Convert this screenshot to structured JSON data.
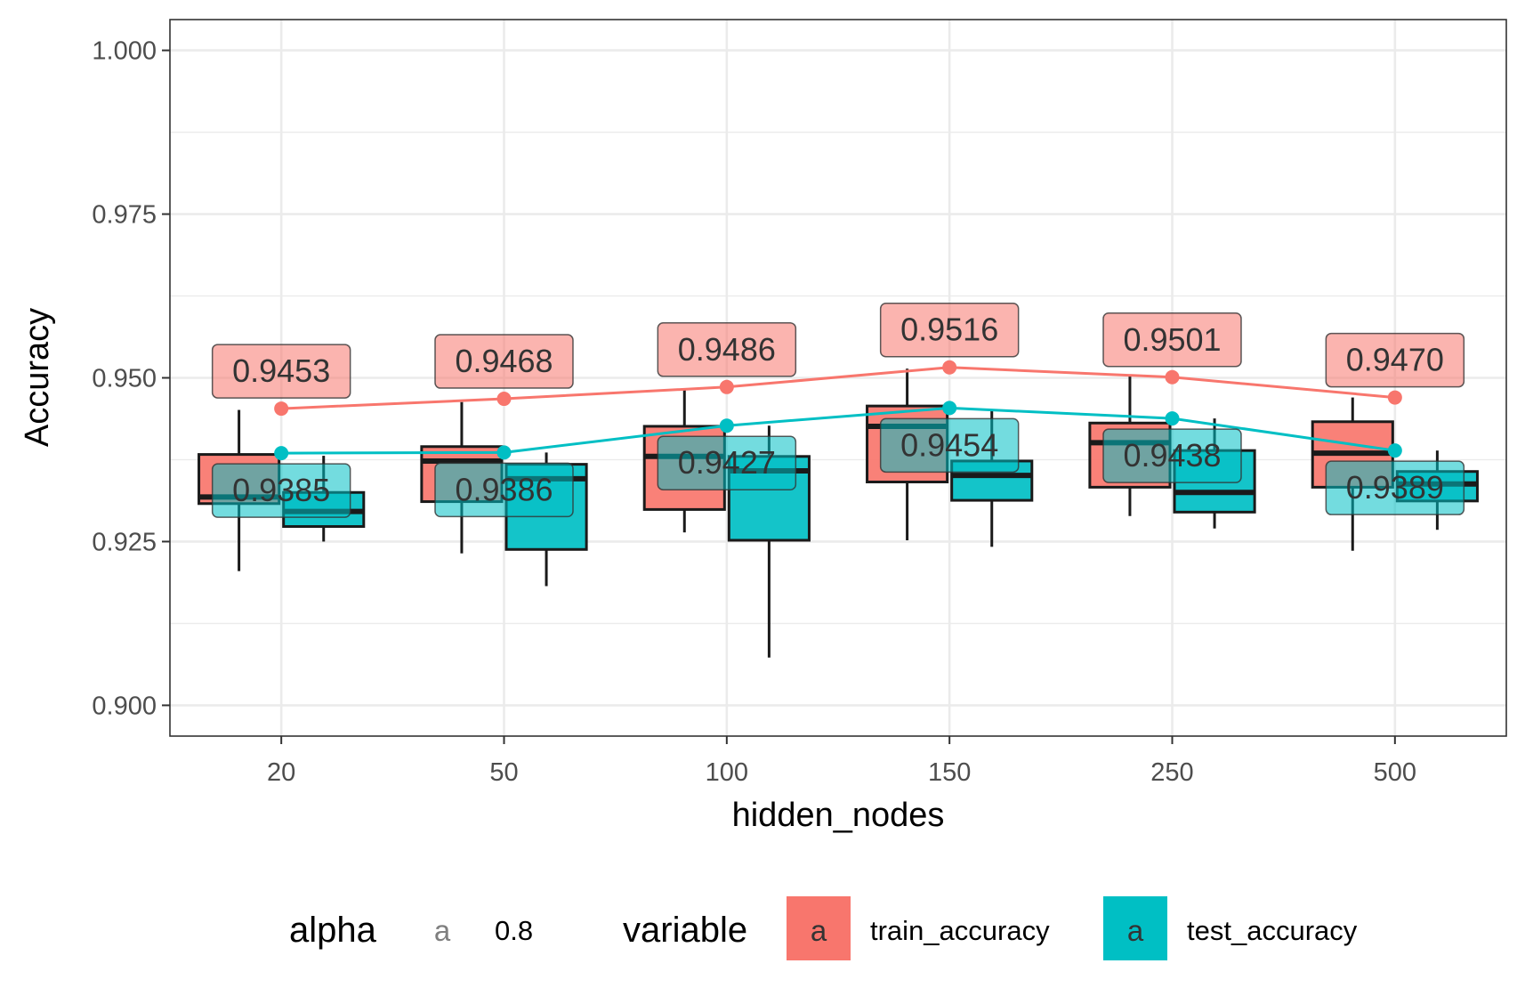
{
  "chart_data": {
    "type": "boxplot",
    "xlabel": "hidden_nodes",
    "ylabel": "Accuracy",
    "categories": [
      "20",
      "50",
      "100",
      "150",
      "250",
      "500"
    ],
    "ylim": [
      0.8953,
      1.0047
    ],
    "y_ticks": [
      0.9,
      0.925,
      0.95,
      0.975,
      1.0
    ],
    "y_tick_labels": [
      "0.900",
      "0.925",
      "0.950",
      "0.975",
      "1.000"
    ],
    "grid": true,
    "legend_position": "bottom",
    "series": [
      {
        "name": "train_accuracy",
        "color": "#F8766D",
        "boxes": [
          {
            "min": 0.9205,
            "q1": 0.9308,
            "median": 0.9318,
            "q3": 0.9383,
            "max": 0.9451
          },
          {
            "min": 0.9232,
            "q1": 0.9311,
            "median": 0.9373,
            "q3": 0.9395,
            "max": 0.9463
          },
          {
            "min": 0.9264,
            "q1": 0.9299,
            "median": 0.938,
            "q3": 0.9426,
            "max": 0.9484
          },
          {
            "min": 0.9252,
            "q1": 0.9341,
            "median": 0.9426,
            "q3": 0.9457,
            "max": 0.9514
          },
          {
            "min": 0.9289,
            "q1": 0.9333,
            "median": 0.9401,
            "q3": 0.9431,
            "max": 0.9502
          },
          {
            "min": 0.9236,
            "q1": 0.9333,
            "median": 0.9385,
            "q3": 0.9433,
            "max": 0.947
          }
        ],
        "means": [
          0.9453,
          0.9468,
          0.9486,
          0.9516,
          0.9501,
          0.947
        ],
        "mean_labels": [
          "0.9453",
          "0.9468",
          "0.9486",
          "0.9516",
          "0.9501",
          "0.9470"
        ]
      },
      {
        "name": "test_accuracy",
        "color": "#00BFC4",
        "boxes": [
          {
            "min": 0.925,
            "q1": 0.9273,
            "median": 0.9296,
            "q3": 0.9325,
            "max": 0.9381
          },
          {
            "min": 0.9182,
            "q1": 0.9238,
            "median": 0.9346,
            "q3": 0.9368,
            "max": 0.9386
          },
          {
            "min": 0.9073,
            "q1": 0.9252,
            "median": 0.9358,
            "q3": 0.938,
            "max": 0.9427
          },
          {
            "min": 0.9242,
            "q1": 0.9313,
            "median": 0.9351,
            "q3": 0.9373,
            "max": 0.9452
          },
          {
            "min": 0.927,
            "q1": 0.9295,
            "median": 0.9325,
            "q3": 0.9389,
            "max": 0.9438
          },
          {
            "min": 0.9268,
            "q1": 0.9312,
            "median": 0.9338,
            "q3": 0.9357,
            "max": 0.9389
          }
        ],
        "means": [
          0.9385,
          0.9386,
          0.9427,
          0.9454,
          0.9438,
          0.9389
        ],
        "mean_labels": [
          "0.9385",
          "0.9386",
          "0.9427",
          "0.9454",
          "0.9438",
          "0.9389"
        ]
      }
    ],
    "legend": {
      "alpha_title": "alpha",
      "alpha_key_glyph": "a",
      "alpha_value": "0.8",
      "variable_title": "variable",
      "variable_key_glyph": "a"
    }
  }
}
